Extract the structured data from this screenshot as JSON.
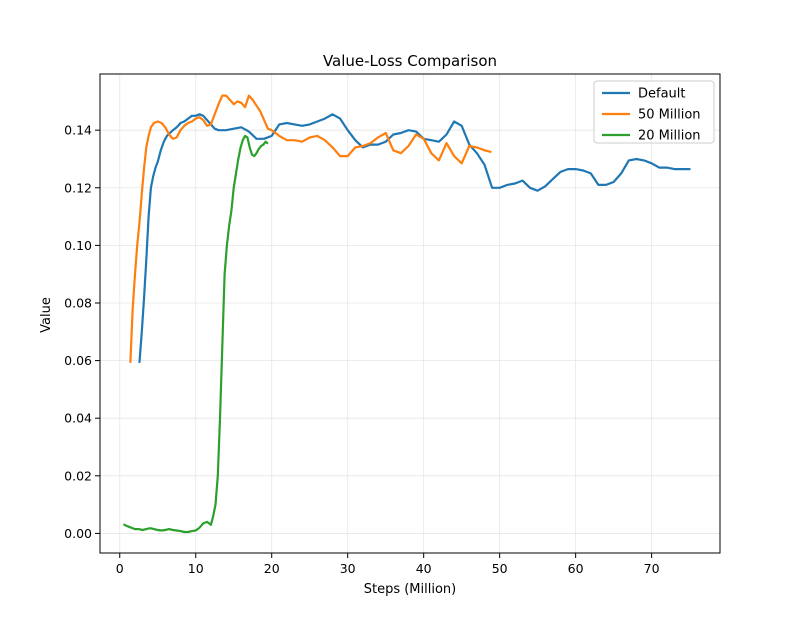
{
  "chart_data": {
    "type": "line",
    "title": "Value-Loss Comparison",
    "xlabel": "Steps (Million)",
    "ylabel": "Value",
    "xlim": [
      -2.6,
      79.0
    ],
    "ylim": [
      -0.0068,
      0.1595
    ],
    "xticks": [
      0,
      10,
      20,
      30,
      40,
      50,
      60,
      70
    ],
    "yticks": [
      0.0,
      0.02,
      0.04,
      0.06,
      0.08,
      0.1,
      0.12,
      0.14
    ],
    "ytick_labels": [
      "0.00",
      "0.02",
      "0.04",
      "0.06",
      "0.08",
      "0.10",
      "0.12",
      "0.14"
    ],
    "grid": true,
    "legend_position": "top-right",
    "series": [
      {
        "name": "Default",
        "color": "#1f77b4",
        "x": [
          2.6,
          2.9,
          3.2,
          3.5,
          3.8,
          4.1,
          4.4,
          4.7,
          5.0,
          5.4,
          5.8,
          6.2,
          6.6,
          7.0,
          7.5,
          8.0,
          8.5,
          9.0,
          9.5,
          10.0,
          10.5,
          11.0,
          11.5,
          12.0,
          12.5,
          13.0,
          14.0,
          15.0,
          16.0,
          17.0,
          18.0,
          19.0,
          20.0,
          21.0,
          22.0,
          23.0,
          24.0,
          25.0,
          26.0,
          27.0,
          28.0,
          29.0,
          30.0,
          31.0,
          32.0,
          33.0,
          34.0,
          35.0,
          36.0,
          37.0,
          38.0,
          39.0,
          40.0,
          41.0,
          42.0,
          43.0,
          44.0,
          45.0,
          46.0,
          47.0,
          48.0,
          49.0,
          50.0,
          51.0,
          52.0,
          53.0,
          54.0,
          55.0,
          56.0,
          57.0,
          58.0,
          59.0,
          60.0,
          61.0,
          62.0,
          63.0,
          64.0,
          65.0,
          66.0,
          67.0,
          68.0,
          69.0,
          70.0,
          71.0,
          72.0,
          73.0,
          74.0,
          75.0
        ],
        "y": [
          0.0595,
          0.07,
          0.082,
          0.095,
          0.11,
          0.12,
          0.124,
          0.127,
          0.129,
          0.133,
          0.136,
          0.138,
          0.139,
          0.14,
          0.141,
          0.1425,
          0.143,
          0.144,
          0.145,
          0.145,
          0.1455,
          0.145,
          0.1435,
          0.142,
          0.1405,
          0.14,
          0.14,
          0.1405,
          0.141,
          0.1395,
          0.137,
          0.137,
          0.138,
          0.142,
          0.1425,
          0.142,
          0.1415,
          0.142,
          0.143,
          0.144,
          0.1455,
          0.144,
          0.14,
          0.1365,
          0.134,
          0.135,
          0.135,
          0.136,
          0.1385,
          0.139,
          0.14,
          0.1395,
          0.137,
          0.1365,
          0.136,
          0.1385,
          0.143,
          0.1415,
          0.135,
          0.132,
          0.128,
          0.12,
          0.12,
          0.121,
          0.1215,
          0.1225,
          0.12,
          0.119,
          0.1205,
          0.123,
          0.1255,
          0.1265,
          0.1265,
          0.126,
          0.125,
          0.121,
          0.121,
          0.122,
          0.125,
          0.1295,
          0.13,
          0.1295,
          0.1285,
          0.127,
          0.127,
          0.1265,
          0.1265,
          0.1265
        ]
      },
      {
        "name": "50 Million",
        "color": "#ff7f0e",
        "x": [
          1.4,
          1.7,
          2.0,
          2.3,
          2.6,
          2.9,
          3.2,
          3.5,
          3.8,
          4.1,
          4.5,
          5.0,
          5.5,
          6.0,
          6.5,
          7.0,
          7.5,
          8.0,
          8.5,
          9.0,
          9.5,
          10.0,
          10.5,
          11.0,
          11.5,
          12.0,
          12.5,
          13.0,
          13.5,
          14.0,
          14.5,
          15.0,
          15.5,
          16.0,
          16.5,
          17.0,
          17.5,
          18.0,
          18.5,
          19.0,
          19.5,
          20.0,
          21.0,
          22.0,
          23.0,
          24.0,
          25.0,
          26.0,
          27.0,
          28.0,
          29.0,
          30.0,
          31.0,
          32.0,
          33.0,
          34.0,
          35.0,
          36.0,
          37.0,
          38.0,
          39.0,
          40.0,
          41.0,
          42.0,
          43.0,
          44.0,
          45.0,
          46.0,
          47.0,
          48.0,
          48.8
        ],
        "y": [
          0.0595,
          0.078,
          0.09,
          0.1,
          0.108,
          0.118,
          0.127,
          0.134,
          0.138,
          0.141,
          0.1425,
          0.143,
          0.1425,
          0.141,
          0.1385,
          0.137,
          0.1375,
          0.14,
          0.1415,
          0.1425,
          0.143,
          0.144,
          0.1445,
          0.1435,
          0.1415,
          0.142,
          0.1455,
          0.149,
          0.152,
          0.152,
          0.1505,
          0.149,
          0.15,
          0.1495,
          0.148,
          0.152,
          0.1505,
          0.1485,
          0.1465,
          0.1435,
          0.1405,
          0.14,
          0.138,
          0.1365,
          0.1365,
          0.136,
          0.1375,
          0.138,
          0.1365,
          0.134,
          0.131,
          0.131,
          0.134,
          0.1345,
          0.1355,
          0.1375,
          0.139,
          0.133,
          0.132,
          0.1345,
          0.1385,
          0.137,
          0.132,
          0.1295,
          0.1355,
          0.131,
          0.1285,
          0.1345,
          0.134,
          0.133,
          0.1325
        ]
      },
      {
        "name": "20 Million",
        "color": "#2ca02c",
        "x": [
          0.6,
          1.0,
          1.5,
          2.0,
          2.5,
          3.0,
          3.5,
          4.0,
          4.5,
          5.0,
          5.5,
          6.0,
          6.5,
          7.0,
          7.5,
          8.0,
          8.5,
          9.0,
          9.5,
          10.0,
          10.5,
          11.0,
          11.5,
          12.0,
          12.3,
          12.6,
          12.9,
          13.2,
          13.5,
          13.8,
          14.1,
          14.4,
          14.7,
          15.0,
          15.3,
          15.6,
          15.9,
          16.2,
          16.5,
          16.8,
          17.1,
          17.4,
          17.7,
          18.0,
          18.3,
          18.6,
          18.9,
          19.2,
          19.4
        ],
        "y": [
          0.003,
          0.0025,
          0.002,
          0.0015,
          0.0015,
          0.0012,
          0.0015,
          0.0018,
          0.0015,
          0.0012,
          0.001,
          0.0012,
          0.0015,
          0.0012,
          0.001,
          0.0008,
          0.0005,
          0.0005,
          0.0008,
          0.001,
          0.002,
          0.0035,
          0.004,
          0.003,
          0.006,
          0.01,
          0.02,
          0.04,
          0.065,
          0.09,
          0.1,
          0.107,
          0.112,
          0.12,
          0.125,
          0.13,
          0.134,
          0.1365,
          0.138,
          0.1375,
          0.134,
          0.1315,
          0.131,
          0.132,
          0.1335,
          0.1345,
          0.135,
          0.136,
          0.1355
        ]
      }
    ]
  }
}
